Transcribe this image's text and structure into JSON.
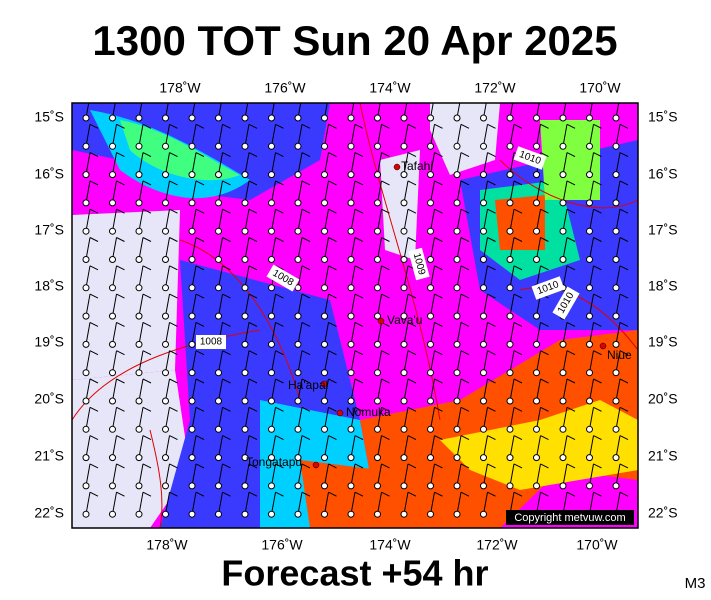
{
  "header": {
    "title": "1300 TOT Sun 20 Apr 2025"
  },
  "footer": {
    "forecast": "Forecast +54 hr",
    "model": "M3"
  },
  "map": {
    "top_lon_labels": [
      "178˚W",
      "176˚W",
      "174˚W",
      "172˚W",
      "170˚W"
    ],
    "bottom_lon_labels": [
      "178˚W",
      "176˚W",
      "174˚W",
      "172˚W",
      "170˚W"
    ],
    "lat_labels": [
      "15˚S",
      "16˚S",
      "17˚S",
      "18˚S",
      "19˚S",
      "20˚S",
      "21˚S",
      "22˚S"
    ],
    "places": [
      {
        "label": "Tafahi"
      },
      {
        "label": "Vava'u"
      },
      {
        "label": "Niue"
      },
      {
        "label": "Ha'apai"
      },
      {
        "label": "Nomuka"
      },
      {
        "label": "Tongatapu"
      }
    ],
    "isobars": [
      {
        "label": "1008"
      },
      {
        "label": "1009"
      },
      {
        "label": "1010"
      },
      {
        "label": "1010"
      },
      {
        "label": "1010"
      },
      {
        "label": "1008"
      }
    ],
    "copyright": "Copyright metvuw.com"
  }
}
